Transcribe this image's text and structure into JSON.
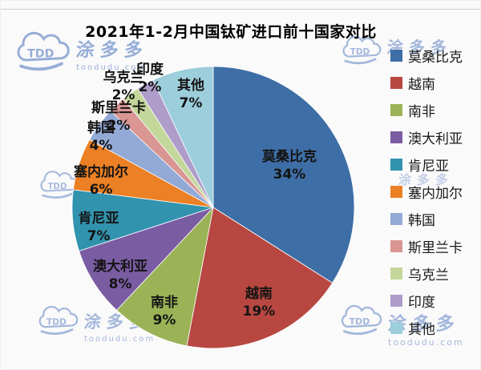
{
  "chart_data": {
    "type": "pie",
    "title": "2021年1-2月中国钛矿进口前十国家对比",
    "legend_position": "right",
    "start_angle_deg": 0,
    "direction": "clockwise",
    "units": "percent",
    "slices": [
      {
        "id": "mozambique",
        "label": "莫桑比克",
        "value": 34,
        "pct_label": "34%",
        "color": "#3E6EA6"
      },
      {
        "id": "vietnam",
        "label": "越南",
        "value": 19,
        "pct_label": "19%",
        "color": "#B84742"
      },
      {
        "id": "south-africa",
        "label": "南非",
        "value": 9,
        "pct_label": "9%",
        "color": "#9BB356"
      },
      {
        "id": "australia",
        "label": "澳大利亚",
        "value": 8,
        "pct_label": "8%",
        "color": "#7A5CA3"
      },
      {
        "id": "kenya",
        "label": "肯尼亚",
        "value": 7,
        "pct_label": "7%",
        "color": "#3193AE"
      },
      {
        "id": "senegal",
        "label": "塞内加尔",
        "value": 6,
        "pct_label": "6%",
        "color": "#EC8024"
      },
      {
        "id": "south-korea",
        "label": "韩国",
        "value": 4,
        "pct_label": "4%",
        "color": "#93A9D6"
      },
      {
        "id": "sri-lanka",
        "label": "斯里兰卡",
        "value": 2,
        "pct_label": "2%",
        "color": "#D99693"
      },
      {
        "id": "ukraine",
        "label": "乌克兰",
        "value": 2,
        "pct_label": "2%",
        "color": "#C4D79B"
      },
      {
        "id": "india",
        "label": "印度",
        "value": 2,
        "pct_label": "2%",
        "color": "#AE9CC9"
      },
      {
        "id": "other",
        "label": "其他",
        "value": 7,
        "pct_label": "7%",
        "color": "#9CCEDB"
      }
    ]
  },
  "watermark": {
    "logo_text": "TDD",
    "brand": "涂多多",
    "url": "toodudu.com"
  }
}
